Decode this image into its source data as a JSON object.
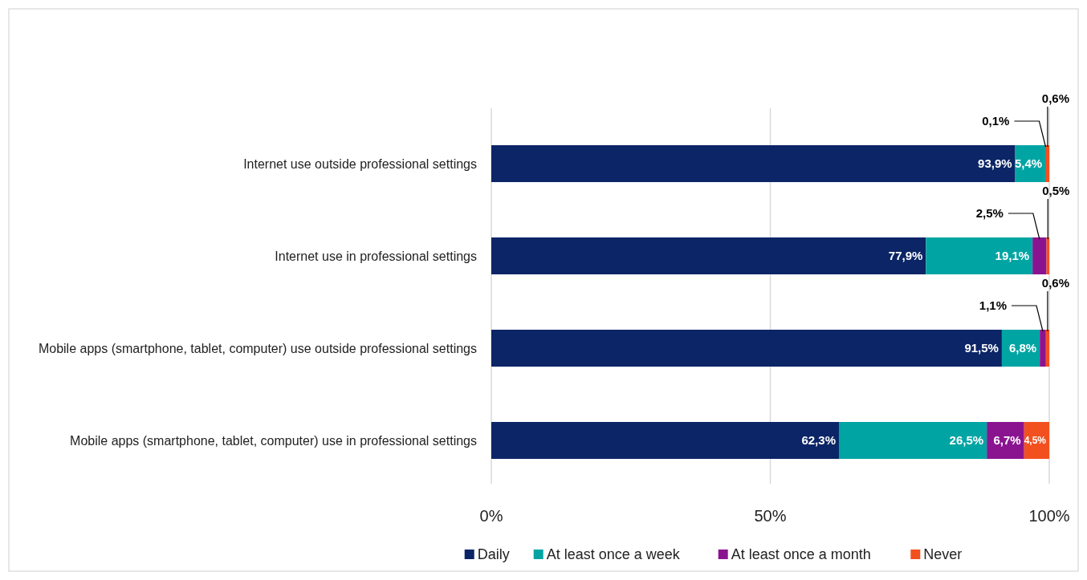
{
  "chart_data": {
    "type": "bar",
    "orientation": "horizontal",
    "stacked": true,
    "categories": [
      "Internet use outside professional settings",
      "Internet use in professional settings",
      "Mobile apps (smartphone, tablet, computer) use outside professional settings",
      "Mobile apps (smartphone, tablet, computer) use in professional settings"
    ],
    "series": [
      {
        "name": "Daily",
        "color": "#0b2566",
        "values": [
          93.9,
          77.9,
          91.5,
          62.3
        ],
        "value_labels": [
          "93,9%",
          "77,9%",
          "91,5%",
          "62,3%"
        ]
      },
      {
        "name": "At least once a week",
        "color": "#00a5a3",
        "values": [
          5.4,
          19.1,
          6.8,
          26.5
        ],
        "value_labels": [
          "5,4%",
          "19,1%",
          "6,8%",
          "26,5%"
        ]
      },
      {
        "name": "At least once a month",
        "color": "#8a1490",
        "values": [
          0.1,
          2.5,
          1.1,
          6.7
        ],
        "value_labels": [
          "0,1%",
          "2,5%",
          "1,1%",
          "6,7%"
        ]
      },
      {
        "name": "Never",
        "color": "#f2501f",
        "values": [
          0.6,
          0.5,
          0.6,
          4.5
        ],
        "value_labels": [
          "0,6%",
          "0,5%",
          "0,6%",
          "4,5%"
        ]
      }
    ],
    "xlim": [
      0,
      100
    ],
    "xticks": [
      {
        "value": 0,
        "label": "0%"
      },
      {
        "value": 50,
        "label": "50%"
      },
      {
        "value": 100,
        "label": "100%"
      }
    ],
    "grid": "x",
    "legend": "bottom"
  }
}
